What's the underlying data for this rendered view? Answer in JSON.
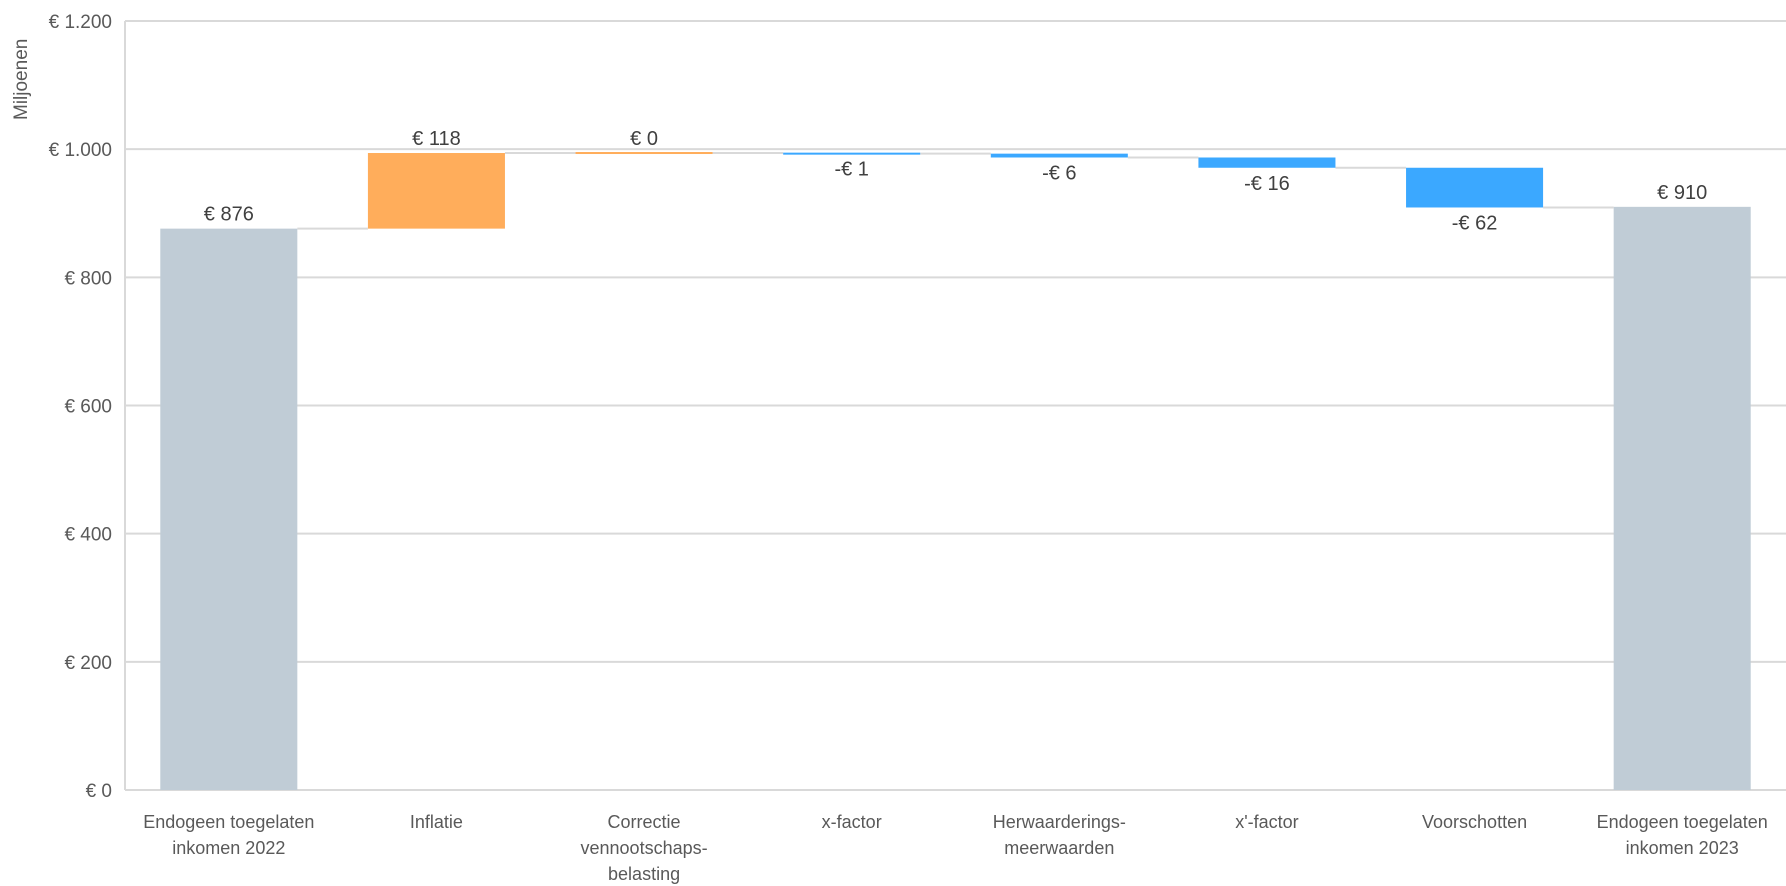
{
  "chart_data": {
    "type": "waterfall",
    "ylabel": "Miljoenen",
    "ylim": [
      0,
      1200
    ],
    "y_ticks": [
      0,
      200,
      400,
      600,
      800,
      1000,
      1200
    ],
    "y_tick_labels": [
      "€ 0",
      "€ 200",
      "€ 400",
      "€ 600",
      "€ 800",
      "€ 1.000",
      "€ 1.200"
    ],
    "grid": true,
    "legend": "none",
    "colors": {
      "total": "#c0ccd6",
      "increase": "#ffad5b",
      "decrease": "#3ba8ff",
      "gridline": "#d9d9d9",
      "connector": "#d9d9d9"
    },
    "bars": [
      {
        "category": [
          "Endogeen toegelaten",
          "inkomen 2022"
        ],
        "kind": "total",
        "value": 876,
        "label": "€ 876"
      },
      {
        "category": [
          "Inflatie"
        ],
        "kind": "increase",
        "value": 118,
        "label": "€ 118"
      },
      {
        "category": [
          "Correctie",
          "vennootschaps-",
          "belasting"
        ],
        "kind": "increase",
        "value": 0,
        "label": "€ 0"
      },
      {
        "category": [
          "x-factor"
        ],
        "kind": "decrease",
        "value": -1,
        "label": "-€ 1"
      },
      {
        "category": [
          "Herwaarderings-",
          "meerwaarden"
        ],
        "kind": "decrease",
        "value": -6,
        "label": "-€ 6"
      },
      {
        "category": [
          "x'-factor"
        ],
        "kind": "decrease",
        "value": -16,
        "label": "-€ 16"
      },
      {
        "category": [
          "Voorschotten"
        ],
        "kind": "decrease",
        "value": -62,
        "label": "-€ 62"
      },
      {
        "category": [
          "Endogeen toegelaten",
          "inkomen 2023"
        ],
        "kind": "total",
        "value": 910,
        "label": "€ 910"
      }
    ]
  }
}
